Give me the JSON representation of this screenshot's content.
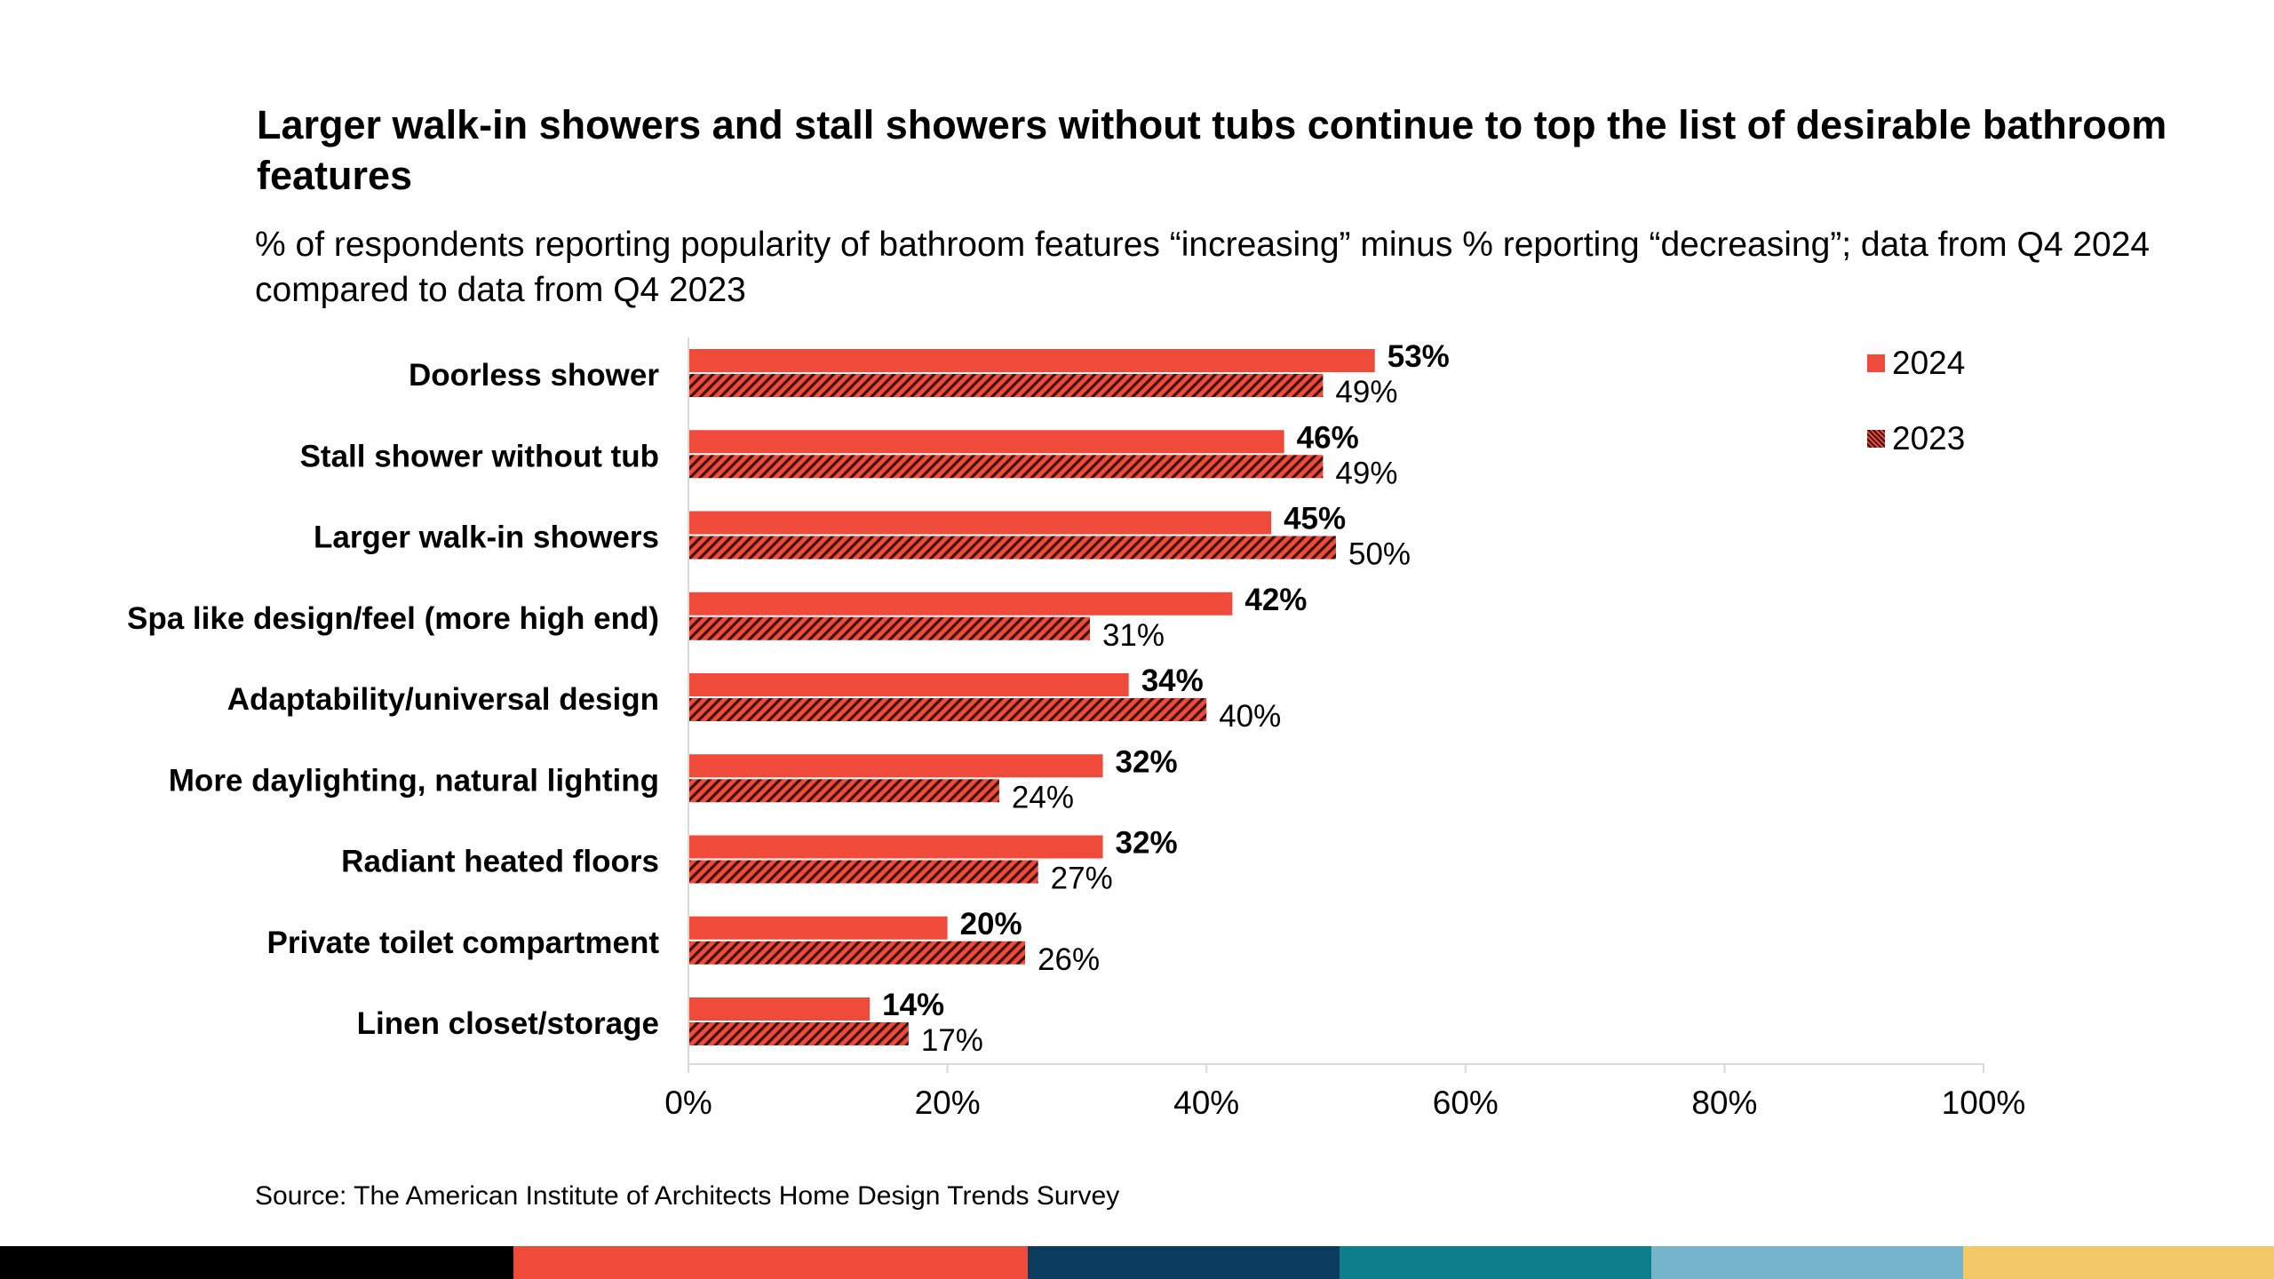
{
  "title": "Larger walk-in showers and stall showers without tubs continue to top the list of desirable bathroom features",
  "subtitle": "% of respondents reporting popularity of bathroom features “increasing” minus % reporting “decreasing”; data from Q4 2024 compared to data from Q4 2023",
  "source": "Source: The American Institute of Architects Home Design Trends Survey",
  "colors": {
    "bar_2024": "#f04a3a",
    "bar_2023_hatch_dark": "#3a1210",
    "axis": "#d9d9d9",
    "footer": [
      "#000000",
      "#f04a3a",
      "#0b3c5d",
      "#0e7d8c",
      "#76b4cc",
      "#f3c868"
    ]
  },
  "chart_data": {
    "type": "bar",
    "orientation": "horizontal",
    "categories": [
      "Doorless shower",
      "Stall shower without tub",
      "Larger walk-in showers",
      "Spa like design/feel (more high end)",
      "Adaptability/universal design",
      "More daylighting, natural lighting",
      "Radiant heated floors",
      "Private toilet compartment",
      "Linen closet/storage"
    ],
    "series": [
      {
        "name": "2024",
        "values": [
          53,
          46,
          45,
          42,
          34,
          32,
          32,
          20,
          14
        ],
        "labels": [
          "53%",
          "46%",
          "45%",
          "42%",
          "34%",
          "32%",
          "32%",
          "20%",
          "14%"
        ],
        "fill": "solid"
      },
      {
        "name": "2023",
        "values": [
          49,
          49,
          50,
          31,
          40,
          24,
          27,
          26,
          17
        ],
        "labels": [
          "49%",
          "49%",
          "50%",
          "31%",
          "40%",
          "24%",
          "27%",
          "26%",
          "17%"
        ],
        "fill": "hatched"
      }
    ],
    "xlim": [
      0,
      100
    ],
    "xticks": [
      0,
      20,
      40,
      60,
      80,
      100
    ],
    "xtick_labels": [
      "0%",
      "20%",
      "40%",
      "60%",
      "80%",
      "100%"
    ],
    "grid": false,
    "legend_position": "top-right"
  }
}
